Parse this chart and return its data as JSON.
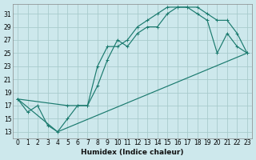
{
  "xlabel": "Humidex (Indice chaleur)",
  "bg_color": "#cde8ec",
  "grid_color": "#a8cccc",
  "line_color": "#1a7a6e",
  "xlim": [
    -0.5,
    23.5
  ],
  "ylim": [
    12.0,
    32.5
  ],
  "yticks": [
    13,
    15,
    17,
    19,
    21,
    23,
    25,
    27,
    29,
    31
  ],
  "xticks": [
    0,
    1,
    2,
    3,
    4,
    5,
    6,
    7,
    8,
    9,
    10,
    11,
    12,
    13,
    14,
    15,
    16,
    17,
    18,
    19,
    20,
    21,
    22,
    23
  ],
  "curve1_x": [
    0,
    1,
    2,
    3,
    4,
    5,
    6,
    7,
    8,
    9,
    10,
    11,
    12,
    13,
    14,
    15,
    16,
    17,
    18,
    19,
    20,
    21,
    22,
    23
  ],
  "curve1_y": [
    18,
    16,
    17,
    14,
    13,
    15,
    17,
    17,
    20,
    24,
    27,
    26,
    28,
    29,
    29,
    31,
    32,
    32,
    31,
    30,
    25,
    28,
    26,
    25
  ],
  "curve2_x": [
    0,
    5,
    6,
    7,
    8,
    9,
    10,
    11,
    12,
    13,
    14,
    15,
    16,
    17,
    18,
    19,
    20,
    21,
    22,
    23
  ],
  "curve2_y": [
    18,
    17,
    17,
    17,
    23,
    26,
    26,
    27,
    29,
    30,
    31,
    32,
    32,
    32,
    32,
    31,
    30,
    30,
    28,
    25
  ],
  "curve3_x": [
    0,
    4,
    23
  ],
  "curve3_y": [
    18,
    13,
    25
  ]
}
